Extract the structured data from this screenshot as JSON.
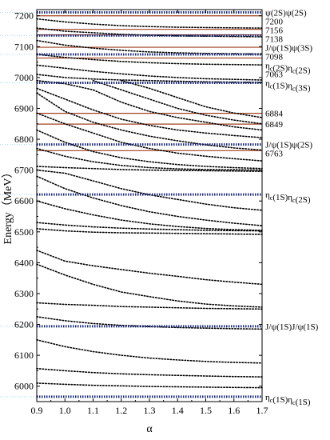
{
  "chart_data": {
    "type": "line",
    "title": "",
    "xlabel": "α",
    "ylabel": "Energy（MeV）",
    "xlim": [
      0.9,
      1.7
    ],
    "ylim": [
      5950,
      7220
    ],
    "xticks": [
      "0.9",
      "1.0",
      "1.1",
      "1.2",
      "1.3",
      "1.4",
      "1.5",
      "1.6",
      "1.7"
    ],
    "yticks": [
      "6000",
      "6100",
      "6200",
      "6300",
      "6400",
      "6500",
      "6600",
      "6700",
      "6800",
      "6900",
      "7000",
      "7100",
      "7200"
    ],
    "grid": false,
    "thresholds": [
      {
        "label_main": "η",
        "sub1": "c",
        "mid": "(1S)η",
        "sub2": "c",
        "tail": "(1S)",
        "value": 5966
      },
      {
        "label_main": "J/ψ(1S)J/ψ(1S)",
        "sub1": "",
        "mid": "",
        "sub2": "",
        "tail": "",
        "value": 6194
      },
      {
        "label_main": "η",
        "sub1": "c",
        "mid": "(1S)η",
        "sub2": "c",
        "tail": "(2S)",
        "value": 6621
      },
      {
        "label_main": "J/ψ(1S)ψ(2S)",
        "sub1": "",
        "mid": "",
        "sub2": "",
        "tail": "",
        "value": 6783
      },
      {
        "label_main": "η",
        "sub1": "c",
        "mid": "(1S)η",
        "sub2": "c",
        "tail": "(3S)",
        "value": 6983
      },
      {
        "label_main": "η",
        "sub1": "c",
        "mid": "(2S)η",
        "sub2": "c",
        "tail": "(2S)",
        "value": 7075
      },
      {
        "label_main": "J/ψ(1S)ψ(3S)",
        "sub1": "",
        "mid": "",
        "sub2": "",
        "tail": "",
        "value": 7136
      },
      {
        "label_main": "ψ(2S)ψ(2S)",
        "sub1": "",
        "mid": "",
        "sub2": "",
        "tail": "",
        "value": 7211
      }
    ],
    "resonances": [
      {
        "label": "6763",
        "value": 6763
      },
      {
        "label": "6849",
        "value": 6849
      },
      {
        "label": "6884",
        "value": 6884
      },
      {
        "label": "7063",
        "value": 7063
      },
      {
        "label": "7098",
        "value": 7098
      },
      {
        "label": "7138",
        "value": 7138
      },
      {
        "label": "7156",
        "value": 7156
      },
      {
        "label": "7200",
        "value": 7200
      }
    ],
    "series": [
      {
        "x": [
          0.9,
          1.0,
          1.1,
          1.2,
          1.3,
          1.4,
          1.5,
          1.6,
          1.7
        ],
        "y": [
          6057,
          6050,
          6044,
          6040,
          6037,
          6035,
          6033,
          6031,
          6030
        ]
      },
      {
        "x": [
          0.9,
          1.0,
          1.1,
          1.2,
          1.3,
          1.4,
          1.5,
          1.6,
          1.7
        ],
        "y": [
          6010,
          6006,
          6003,
          6001,
          5999,
          5998,
          5997,
          5996,
          5995
        ]
      },
      {
        "x": [
          0.9,
          1.0,
          1.1,
          1.2,
          1.3,
          1.4,
          1.5,
          1.6,
          1.7
        ],
        "y": [
          6150,
          6128,
          6112,
          6100,
          6091,
          6085,
          6080,
          6077,
          6075
        ]
      },
      {
        "x": [
          0.9,
          1.0,
          1.1,
          1.2,
          1.3,
          1.4,
          1.5,
          1.6,
          1.7
        ],
        "y": [
          6225,
          6212,
          6203,
          6197,
          6193,
          6190,
          6188,
          6186,
          6185
        ]
      },
      {
        "x": [
          0.9,
          1.0,
          1.1,
          1.2,
          1.3,
          1.4,
          1.5,
          1.6,
          1.7
        ],
        "y": [
          6270,
          6265,
          6262,
          6258,
          6256,
          6254,
          6252,
          6251,
          6250
        ]
      },
      {
        "x": [
          0.9,
          1.0,
          1.1,
          1.2,
          1.3,
          1.4,
          1.5,
          1.6,
          1.7
        ],
        "y": [
          6395,
          6360,
          6330,
          6305,
          6290,
          6276,
          6266,
          6260,
          6256
        ]
      },
      {
        "x": [
          0.9,
          1.0,
          1.1,
          1.2,
          1.3,
          1.4,
          1.5,
          1.6,
          1.7
        ],
        "y": [
          6440,
          6405,
          6390,
          6378,
          6366,
          6356,
          6345,
          6337,
          6330
        ]
      },
      {
        "x": [
          0.9,
          1.0,
          1.1,
          1.2,
          1.3,
          1.4,
          1.5,
          1.6,
          1.7
        ],
        "y": [
          6510,
          6503,
          6499,
          6497,
          6496,
          6495,
          6494,
          6493,
          6492
        ]
      },
      {
        "x": [
          0.9,
          1.0,
          1.1,
          1.2,
          1.3,
          1.4,
          1.5,
          1.6,
          1.7
        ],
        "y": [
          6530,
          6522,
          6516,
          6512,
          6509,
          6507,
          6505,
          6504,
          6503
        ]
      },
      {
        "x": [
          0.9,
          1.0,
          1.1,
          1.2,
          1.3,
          1.4,
          1.5,
          1.6,
          1.7
        ],
        "y": [
          6600,
          6575,
          6555,
          6538,
          6526,
          6517,
          6511,
          6507,
          6505
        ]
      },
      {
        "x": [
          0.9,
          1.0,
          1.1,
          1.2,
          1.3,
          1.4,
          1.5,
          1.6,
          1.7
        ],
        "y": [
          6680,
          6640,
          6610,
          6585,
          6565,
          6550,
          6538,
          6528,
          6520
        ]
      },
      {
        "x": [
          0.9,
          1.0,
          1.1,
          1.2,
          1.3,
          1.4,
          1.5,
          1.6,
          1.7
        ],
        "y": [
          6700,
          6690,
          6665,
          6640,
          6620,
          6605,
          6590,
          6578,
          6570
        ]
      },
      {
        "x": [
          0.9,
          1.0,
          1.1,
          1.2,
          1.3,
          1.4,
          1.5,
          1.6,
          1.7
        ],
        "y": [
          6712,
          6708,
          6705,
          6702,
          6700,
          6699,
          6698,
          6697,
          6696
        ]
      },
      {
        "x": [
          0.9,
          1.0,
          1.1,
          1.2,
          1.3,
          1.4,
          1.5,
          1.6,
          1.7
        ],
        "y": [
          6770,
          6745,
          6727,
          6715,
          6708,
          6704,
          6702,
          6701,
          6700
        ]
      },
      {
        "x": [
          0.9,
          1.0,
          1.1,
          1.2,
          1.3,
          1.4,
          1.5,
          1.6,
          1.7
        ],
        "y": [
          6830,
          6790,
          6760,
          6740,
          6727,
          6718,
          6712,
          6708,
          6705
        ]
      },
      {
        "x": [
          0.9,
          1.0,
          1.1,
          1.2,
          1.3,
          1.4,
          1.5,
          1.6,
          1.7
        ],
        "y": [
          6885,
          6850,
          6820,
          6790,
          6770,
          6755,
          6745,
          6737,
          6730
        ]
      },
      {
        "x": [
          0.9,
          1.0,
          1.1,
          1.2,
          1.3,
          1.4,
          1.5,
          1.6,
          1.7
        ],
        "y": [
          6950,
          6890,
          6855,
          6830,
          6810,
          6795,
          6782,
          6772,
          6765
        ]
      },
      {
        "x": [
          0.9,
          1.0,
          1.1,
          1.2,
          1.3,
          1.4,
          1.5,
          1.6,
          1.7
        ],
        "y": [
          6965,
          6930,
          6895,
          6865,
          6845,
          6830,
          6820,
          6812,
          6805
        ]
      },
      {
        "x": [
          0.9,
          1.0,
          1.1,
          1.2,
          1.3,
          1.4,
          1.5,
          1.6,
          1.7
        ],
        "y": [
          6990,
          6980,
          6960,
          6920,
          6890,
          6870,
          6855,
          6840,
          6830
        ]
      },
      {
        "x": [
          1.1,
          1.2,
          1.3,
          1.4,
          1.5,
          1.6,
          1.7
        ],
        "y": [
          6990,
          6960,
          6930,
          6900,
          6878,
          6862,
          6850
        ]
      },
      {
        "x": [
          1.2,
          1.3,
          1.4,
          1.5,
          1.6,
          1.7
        ],
        "y": [
          6990,
          6965,
          6935,
          6905,
          6885,
          6870
        ]
      },
      {
        "x": [
          0.9,
          1.0,
          1.1,
          1.2,
          1.3,
          1.4,
          1.5,
          1.6,
          1.7
        ],
        "y": [
          7010,
          7000,
          6995,
          6992,
          6990,
          6988,
          6986,
          6985,
          6984
        ]
      },
      {
        "x": [
          0.9,
          1.0,
          1.1,
          1.2,
          1.3,
          1.4,
          1.5,
          1.6,
          1.7
        ],
        "y": [
          7040,
          7030,
          7020,
          7012,
          7005,
          7000,
          6996,
          6994,
          6992
        ]
      },
      {
        "x": [
          0.9,
          1.0,
          1.1,
          1.2,
          1.3,
          1.4,
          1.5,
          1.6,
          1.7
        ],
        "y": [
          7075,
          7065,
          7058,
          7052,
          7048,
          7045,
          7043,
          7042,
          7041
        ]
      },
      {
        "x": [
          0.9,
          1.0,
          1.1,
          1.2,
          1.3,
          1.4,
          1.5,
          1.6,
          1.7
        ],
        "y": [
          7120,
          7105,
          7095,
          7088,
          7083,
          7080,
          7078,
          7077,
          7076
        ]
      },
      {
        "x": [
          0.9,
          1.0,
          1.1,
          1.2,
          1.3,
          1.4,
          1.5,
          1.6,
          1.7
        ],
        "y": [
          7160,
          7150,
          7145,
          7140,
          7137,
          7135,
          7134,
          7133,
          7132
        ]
      },
      {
        "x": [
          0.9,
          1.0,
          1.1,
          1.2,
          1.3,
          1.4,
          1.5,
          1.6,
          1.7
        ],
        "y": [
          7190,
          7180,
          7173,
          7168,
          7165,
          7163,
          7162,
          7161,
          7160
        ]
      }
    ],
    "colors": {
      "threshold": "#1a2a7a",
      "resonance": "#a04020",
      "series": "#000000",
      "faint": "#a8d8f0"
    }
  }
}
